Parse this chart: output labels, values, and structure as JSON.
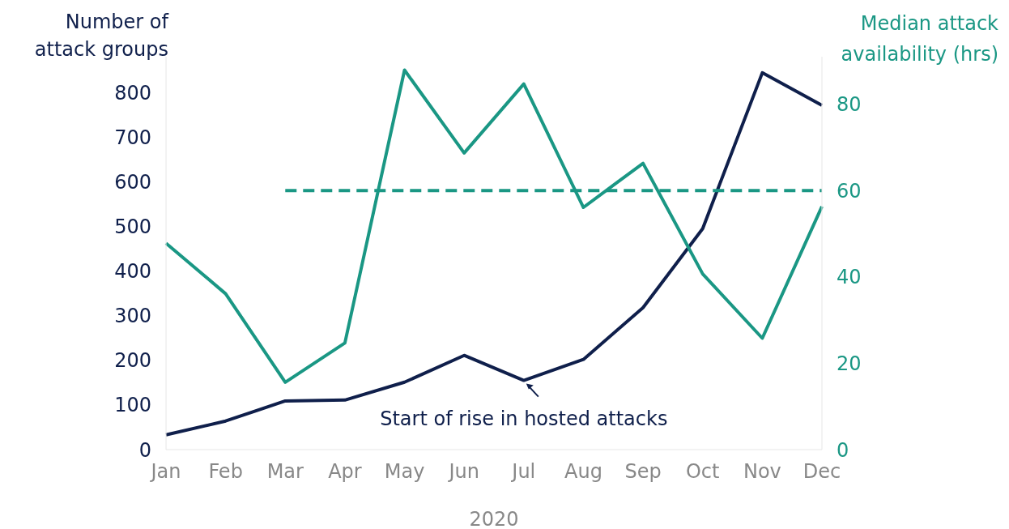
{
  "chart_data": {
    "type": "line",
    "categories": [
      "Jan",
      "Feb",
      "Mar",
      "Apr",
      "May",
      "Jun",
      "Jul",
      "Aug",
      "Sep",
      "Oct",
      "Nov",
      "Dec"
    ],
    "xlabel": "2020",
    "ylabel": "Number of attack groups",
    "y2label": "Median attack availability (hrs)",
    "series": [
      {
        "color": "#0f1f4b",
        "values": [
          33,
          64,
          109,
          111,
          151,
          211,
          155,
          202,
          318,
          495,
          844,
          771
        ]
      },
      {
        "color": "#1a9784",
        "axis": "y2",
        "values": [
          47.8,
          36.1,
          15.6,
          24.7,
          87.9,
          68.7,
          84.7,
          56.1,
          66.3,
          40.7,
          25.8,
          56.3
        ]
      },
      {
        "color": "#1a9784",
        "axis": "y2",
        "line_style": "dashed",
        "values": [
          null,
          null,
          60,
          60,
          60,
          60,
          60,
          60,
          60,
          60,
          60,
          60
        ]
      }
    ],
    "ylim": [
      0,
      880
    ],
    "yticks": [
      0,
      100,
      200,
      300,
      400,
      500,
      600,
      700,
      800
    ],
    "y2lim": [
      0,
      91
    ],
    "y2ticks": [
      0,
      20,
      40,
      60,
      80
    ],
    "annotations": [
      {
        "text": "Start of rise in hosted attacks",
        "x": "Jul",
        "y": 155
      }
    ],
    "grid": false,
    "legend": false,
    "marker": "none"
  }
}
